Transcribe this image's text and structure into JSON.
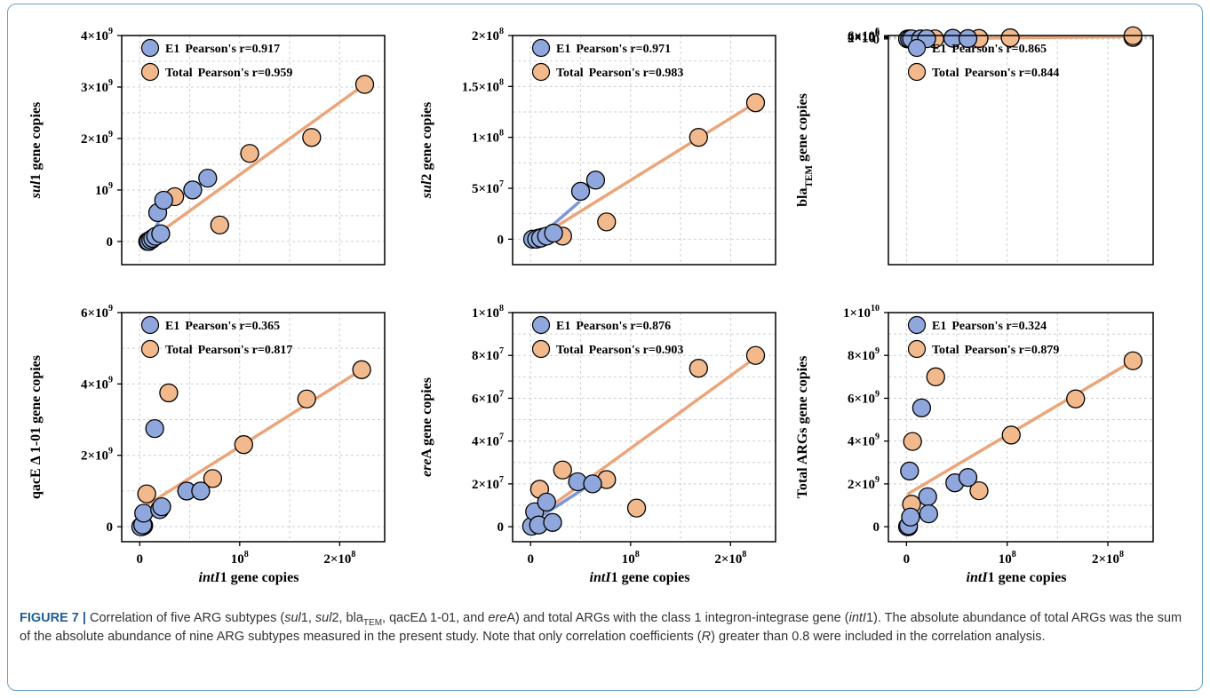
{
  "figure": {
    "caption_label": "FIGURE 7 |",
    "caption_segments": [
      {
        "t": " Correlation of five ARG subtypes (",
        "s": "n"
      },
      {
        "t": "sul",
        "s": "i"
      },
      {
        "t": "1, ",
        "s": "n"
      },
      {
        "t": "sul",
        "s": "i"
      },
      {
        "t": "2, bla",
        "s": "n"
      },
      {
        "t": "TEM",
        "s": "sub"
      },
      {
        "t": ", qacEΔ 1-01, and ",
        "s": "n"
      },
      {
        "t": "ere",
        "s": "i"
      },
      {
        "t": "A) and total ARGs with the class 1 integron-integrase gene (",
        "s": "n"
      },
      {
        "t": "intI",
        "s": "i"
      },
      {
        "t": "1). The absolute abundance of total ARGs was the sum of the absolute abundance of nine ARG subtypes measured in the present study. Note that only correlation coefficients (",
        "s": "n"
      },
      {
        "t": "R",
        "s": "i"
      },
      {
        "t": ") greater than 0.8 were included in the correlation analysis.",
        "s": "n"
      }
    ]
  },
  "colors": {
    "e1": "#8fa7dc",
    "total": "#f2b98d",
    "e1_line": "#7c97d4",
    "total_line": "#eba57a",
    "grid": "#cfcfcf",
    "axis": "#000000"
  },
  "chart_data": [
    {
      "id": "sul1",
      "type": "scatter",
      "ylabel": [
        {
          "t": "sul",
          "s": "i"
        },
        {
          "t": "1 gene copies",
          "s": "n"
        }
      ],
      "xlabel": "",
      "xlim": [
        -18000000,
        245000000
      ],
      "ylim": [
        -450000000,
        4000000000
      ],
      "xticks": [],
      "yticks": [
        {
          "v": 0,
          "m": "0"
        },
        {
          "v": 1000000000,
          "m": "10",
          "e": "9"
        },
        {
          "v": 2000000000,
          "m": "2×10",
          "e": "9"
        },
        {
          "v": 3000000000,
          "m": "3×10",
          "e": "9"
        },
        {
          "v": 4000000000,
          "m": "4×10",
          "e": "9"
        }
      ],
      "series": [
        {
          "name": "E1",
          "stat": "Pearson's r=0.917",
          "points": [
            [
              9000000,
              0
            ],
            [
              11000000,
              30000000
            ],
            [
              13000000,
              60000000
            ],
            [
              16000000,
              100000000
            ],
            [
              21000000,
              150000000
            ],
            [
              18000000,
              560000000
            ],
            [
              24000000,
              800000000
            ],
            [
              53000000,
              1000000000
            ],
            [
              68000000,
              1230000000
            ]
          ],
          "fit": [
            [
              9000000,
              0
            ],
            [
              32000000,
              900000000
            ]
          ]
        },
        {
          "name": "Total",
          "stat": "Pearson's r=0.959",
          "points": [
            [
              8000000,
              0
            ],
            [
              10000000,
              20000000
            ],
            [
              12000000,
              40000000
            ],
            [
              35000000,
              870000000
            ],
            [
              80000000,
              320000000
            ],
            [
              110000000,
              1710000000
            ],
            [
              172000000,
              2020000000
            ],
            [
              225000000,
              3050000000
            ]
          ],
          "fit": [
            [
              9000000,
              20000000
            ],
            [
              225000000,
              3050000000
            ]
          ]
        }
      ]
    },
    {
      "id": "sul2",
      "type": "scatter",
      "ylabel": [
        {
          "t": "sul",
          "s": "i"
        },
        {
          "t": "2 gene copies",
          "s": "n"
        }
      ],
      "xlabel": "",
      "xlim": [
        -18000000,
        245000000
      ],
      "ylim": [
        -25000000,
        200000000
      ],
      "xticks": [],
      "yticks": [
        {
          "v": 0,
          "m": "0"
        },
        {
          "v": 50000000,
          "m": "5×10",
          "e": "7"
        },
        {
          "v": 100000000,
          "m": "1×10",
          "e": "8"
        },
        {
          "v": 150000000,
          "m": "1.5×10",
          "e": "8"
        },
        {
          "v": 200000000,
          "m": "2×10",
          "e": "8"
        }
      ],
      "series": [
        {
          "name": "E1",
          "stat": "Pearson's r=0.971",
          "points": [
            [
              2000000,
              0
            ],
            [
              6000000,
              0
            ],
            [
              10000000,
              1000000
            ],
            [
              16000000,
              3000000
            ],
            [
              23000000,
              6000000
            ],
            [
              50000000,
              47000000
            ],
            [
              65000000,
              58000000
            ]
          ],
          "fit": [
            [
              2000000,
              -3000000
            ],
            [
              48000000,
              36000000
            ]
          ]
        },
        {
          "name": "Total",
          "stat": "Pearson's r=0.983",
          "points": [
            [
              8000000,
              1000000
            ],
            [
              12000000,
              2000000
            ],
            [
              32000000,
              3000000
            ],
            [
              76000000,
              17000000
            ],
            [
              168000000,
              100000000
            ],
            [
              225000000,
              134000000
            ]
          ],
          "fit": [
            [
              5000000,
              0
            ],
            [
              225000000,
              134000000
            ]
          ]
        }
      ]
    },
    {
      "id": "blaTEM",
      "type": "scatter",
      "ylabel": [
        {
          "t": "bla",
          "s": "n"
        },
        {
          "t": "TEM",
          "s": "sub"
        },
        {
          "t": " gene copies",
          "s": "n"
        }
      ],
      "xlabel": "",
      "xlim": [
        -18000000,
        245000000
      ],
      "ylim": [
        -400000000,
        6100000
      ],
      "xticks": [],
      "yticks": [
        {
          "v": 0,
          "m": "0"
        },
        {
          "v": 2000000,
          "m": "2×10",
          "e": "6"
        },
        {
          "v": 4000000,
          "m": "4×10",
          "e": "6"
        },
        {
          "v": 6000000,
          "m": "6×10",
          "e": "6"
        }
      ],
      "series": [
        {
          "name": "E1",
          "stat": "Pearson's r=0.865",
          "points": [
            [
              1000000,
              0
            ],
            [
              3000000,
              50000
            ],
            [
              5000000,
              150000
            ],
            [
              14000000,
              100000
            ],
            [
              20000000,
              450000
            ],
            [
              46000000,
              1300000
            ],
            [
              61000000,
              700000
            ]
          ],
          "fit": [
            [
              1000000,
              0
            ],
            [
              63000000,
              1200000
            ]
          ]
        },
        {
          "name": "Total",
          "stat": "Pearson's r=0.844",
          "points": [
            [
              3000000,
              150000
            ],
            [
              28000000,
              180000
            ],
            [
              72000000,
              850000
            ],
            [
              103000000,
              2100000
            ],
            [
              225000000,
              2650000
            ],
            [
              225000000,
              5650000
            ]
          ],
          "fit": [
            [
              3000000,
              0
            ],
            [
              222000000,
              4200000
            ]
          ]
        }
      ]
    },
    {
      "id": "qacE",
      "type": "scatter",
      "ylabel": [
        {
          "t": "qacE Δ 1-01 gene copies",
          "s": "n"
        }
      ],
      "xlabel": [
        {
          "t": "intI",
          "s": "i"
        },
        {
          "t": "1 gene copies",
          "s": "n"
        }
      ],
      "xlim": [
        -18000000,
        245000000
      ],
      "ylim": [
        -420000000,
        6000000000
      ],
      "xticks": [
        {
          "v": 0,
          "m": "0"
        },
        {
          "v": 100000000,
          "m": "10",
          "e": "8"
        },
        {
          "v": 200000000,
          "m": "2×10",
          "e": "8"
        }
      ],
      "yticks": [
        {
          "v": 0,
          "m": "0"
        },
        {
          "v": 2000000000,
          "m": "2×10",
          "e": "9"
        },
        {
          "v": 4000000000,
          "m": "4×10",
          "e": "9"
        },
        {
          "v": 6000000000,
          "m": "6×10",
          "e": "9"
        }
      ],
      "series": [
        {
          "name": "E1",
          "stat": "Pearson's r=0.365",
          "points": [
            [
              1000000,
              0
            ],
            [
              3000000,
              50000000
            ],
            [
              4000000,
              380000000
            ],
            [
              15000000,
              2750000000
            ],
            [
              20000000,
              480000000
            ],
            [
              22000000,
              560000000
            ],
            [
              47000000,
              1000000000
            ],
            [
              61000000,
              1000000000
            ]
          ],
          "fit": [],
          "fit_note": "none"
        },
        {
          "name": "Total",
          "stat": "Pearson's r=0.817",
          "points": [
            [
              2000000,
              0
            ],
            [
              4000000,
              30000000
            ],
            [
              7000000,
              920000000
            ],
            [
              29000000,
              3750000000
            ],
            [
              73000000,
              1350000000
            ],
            [
              104000000,
              2300000000
            ],
            [
              167000000,
              3580000000
            ],
            [
              222000000,
              4400000000
            ]
          ],
          "fit": [
            [
              3000000,
              530000000
            ],
            [
              222000000,
              4400000000
            ]
          ]
        }
      ]
    },
    {
      "id": "ereA",
      "type": "scatter",
      "ylabel": [
        {
          "t": "ere",
          "s": "i"
        },
        {
          "t": "A gene copies",
          "s": "n"
        }
      ],
      "xlabel": [
        {
          "t": "intI",
          "s": "i"
        },
        {
          "t": "1 gene copies",
          "s": "n"
        }
      ],
      "xlim": [
        -18000000,
        245000000
      ],
      "ylim": [
        -7000000,
        100000000
      ],
      "xticks": [
        {
          "v": 0,
          "m": "0"
        },
        {
          "v": 100000000,
          "m": "10",
          "e": "8"
        },
        {
          "v": 200000000,
          "m": "2×10",
          "e": "8"
        }
      ],
      "yticks": [
        {
          "v": 0,
          "m": "0"
        },
        {
          "v": 20000000,
          "m": "2×10",
          "e": "7"
        },
        {
          "v": 40000000,
          "m": "4×10",
          "e": "7"
        },
        {
          "v": 60000000,
          "m": "6×10",
          "e": "7"
        },
        {
          "v": 80000000,
          "m": "8×10",
          "e": "7"
        },
        {
          "v": 100000000,
          "m": "1×10",
          "e": "8"
        }
      ],
      "series": [
        {
          "name": "E1",
          "stat": "Pearson's r=0.876",
          "points": [
            [
              1000000,
              200000
            ],
            [
              4000000,
              7000000
            ],
            [
              8000000,
              800000
            ],
            [
              16000000,
              11500000
            ],
            [
              22000000,
              2000000
            ],
            [
              47000000,
              21000000
            ],
            [
              62000000,
              20000000
            ]
          ],
          "fit": [
            [
              1000000,
              2000000
            ],
            [
              64000000,
              21000000
            ]
          ]
        },
        {
          "name": "Total",
          "stat": "Pearson's r=0.903",
          "points": [
            [
              9000000,
              17500000
            ],
            [
              32000000,
              26500000
            ],
            [
              76000000,
              22000000
            ],
            [
              106000000,
              8700000
            ],
            [
              168000000,
              74000000
            ],
            [
              225000000,
              80000000
            ]
          ],
          "fit": [
            [
              1000000,
              3000000
            ],
            [
              225000000,
              79000000
            ]
          ]
        }
      ]
    },
    {
      "id": "totalARGs",
      "type": "scatter",
      "ylabel": [
        {
          "t": "Total ARGs gene copies",
          "s": "n"
        }
      ],
      "xlabel": [
        {
          "t": "intI",
          "s": "i"
        },
        {
          "t": "1 gene copies",
          "s": "n"
        }
      ],
      "xlim": [
        -18000000,
        245000000
      ],
      "ylim": [
        -700000000,
        10000000000
      ],
      "xticks": [
        {
          "v": 0,
          "m": "0"
        },
        {
          "v": 100000000,
          "m": "10",
          "e": "8"
        },
        {
          "v": 200000000,
          "m": "2×10",
          "e": "8"
        }
      ],
      "yticks": [
        {
          "v": 0,
          "m": "0"
        },
        {
          "v": 2000000000,
          "m": "2×10",
          "e": "9"
        },
        {
          "v": 4000000000,
          "m": "4×10",
          "e": "9"
        },
        {
          "v": 6000000000,
          "m": "6×10",
          "e": "9"
        },
        {
          "v": 8000000000,
          "m": "8×10",
          "e": "9"
        },
        {
          "v": 10000000000,
          "m": "1×10",
          "e": "10"
        }
      ],
      "series": [
        {
          "name": "E1",
          "stat": "Pearson's r=0.324",
          "points": [
            [
              1000000,
              0
            ],
            [
              2000000,
              50000000
            ],
            [
              3000000,
              2600000000
            ],
            [
              4000000,
              450000000
            ],
            [
              15000000,
              5550000000
            ],
            [
              21000000,
              1400000000
            ],
            [
              22000000,
              600000000
            ],
            [
              48000000,
              2050000000
            ],
            [
              61000000,
              2300000000
            ]
          ],
          "fit": [],
          "fit_note": "none"
        },
        {
          "name": "Total",
          "stat": "Pearson's r=0.879",
          "points": [
            [
              2000000,
              0
            ],
            [
              5000000,
              1050000000
            ],
            [
              6000000,
              3980000000
            ],
            [
              29000000,
              7000000000
            ],
            [
              72000000,
              1680000000
            ],
            [
              104000000,
              4280000000
            ],
            [
              168000000,
              5970000000
            ],
            [
              225000000,
              7750000000
            ]
          ],
          "fit": [
            [
              2000000,
              1550000000
            ],
            [
              225000000,
              7750000000
            ]
          ]
        }
      ]
    }
  ]
}
